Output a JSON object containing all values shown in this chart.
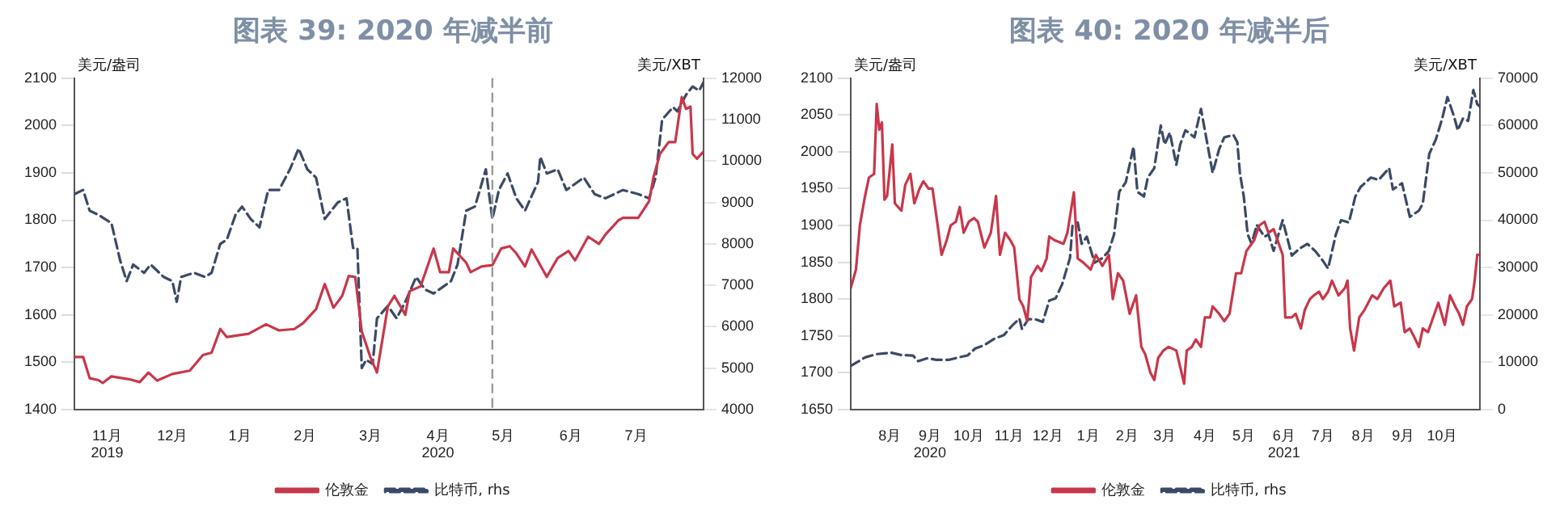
{
  "chart_data": [
    {
      "type": "line",
      "title": "图表 39: 2020 年减半前",
      "ylabel": "美元/盎司",
      "y2label": "美元/XBT",
      "xlim": [
        "2019-11-01",
        "2020-08-16"
      ],
      "ylim": [
        1400,
        2100
      ],
      "yticks": [
        1400,
        1500,
        1600,
        1700,
        1800,
        1900,
        2000,
        2100
      ],
      "y2lim": [
        4000,
        12000
      ],
      "y2ticks": [
        4000,
        5000,
        6000,
        7000,
        8000,
        9000,
        10000,
        11000,
        12000
      ],
      "xticks": [
        {
          "value": "2019-11-16",
          "label": "11月\n2019"
        },
        {
          "value": "2019-12-16",
          "label": "12月"
        },
        {
          "value": "2020-01-16",
          "label": "1月"
        },
        {
          "value": "2020-02-15",
          "label": "2月"
        },
        {
          "value": "2020-03-16",
          "label": "3月"
        },
        {
          "value": "2020-04-16",
          "label": "4月\n2020"
        },
        {
          "value": "2020-05-16",
          "label": "5月"
        },
        {
          "value": "2020-06-16",
          "label": "6月"
        },
        {
          "value": "2020-07-16",
          "label": "7月"
        }
      ],
      "grid": false,
      "legend": "bottom",
      "ref_lines": [
        {
          "axis": "x",
          "value": "2020-05-11",
          "color": "#9a9a9a",
          "line_style": "dashed"
        }
      ],
      "series": [
        {
          "name": "伦敦金",
          "color": "#c8374a",
          "line_style": "solid",
          "x": [
            "2019-11-01",
            "2019-11-05",
            "2019-11-08",
            "2019-11-12",
            "2019-11-14",
            "2019-11-18",
            "2019-11-26",
            "2019-12-01",
            "2019-12-05",
            "2019-12-09",
            "2019-12-16",
            "2019-12-24",
            "2019-12-30",
            "2020-01-03",
            "2020-01-07",
            "2020-01-10",
            "2020-01-20",
            "2020-01-28",
            "2020-02-03",
            "2020-02-10",
            "2020-02-14",
            "2020-02-20",
            "2020-02-24",
            "2020-02-28",
            "2020-03-03",
            "2020-03-06",
            "2020-03-09",
            "2020-03-12",
            "2020-03-16",
            "2020-03-19",
            "2020-03-24",
            "2020-03-27",
            "2020-04-01",
            "2020-04-03",
            "2020-04-08",
            "2020-04-14",
            "2020-04-17",
            "2020-04-21",
            "2020-04-23",
            "2020-04-29",
            "2020-05-01",
            "2020-05-06",
            "2020-05-11",
            "2020-05-15",
            "2020-05-19",
            "2020-05-22",
            "2020-05-26",
            "2020-05-29",
            "2020-06-05",
            "2020-06-10",
            "2020-06-15",
            "2020-06-18",
            "2020-06-24",
            "2020-06-29",
            "2020-07-02",
            "2020-07-08",
            "2020-07-10",
            "2020-07-17",
            "2020-07-22",
            "2020-07-24",
            "2020-07-27",
            "2020-07-31",
            "2020-08-03",
            "2020-08-06",
            "2020-08-08",
            "2020-08-10",
            "2020-08-11",
            "2020-08-13",
            "2020-08-16"
          ],
          "values": [
            1511,
            1511,
            1466,
            1462,
            1456,
            1470,
            1464,
            1458,
            1478,
            1461,
            1475,
            1482,
            1515,
            1520,
            1570,
            1553,
            1560,
            1580,
            1567,
            1570,
            1582,
            1612,
            1665,
            1615,
            1640,
            1682,
            1680,
            1565,
            1510,
            1478,
            1618,
            1640,
            1600,
            1650,
            1660,
            1740,
            1690,
            1690,
            1740,
            1710,
            1690,
            1702,
            1705,
            1740,
            1745,
            1730,
            1702,
            1738,
            1680,
            1720,
            1735,
            1715,
            1765,
            1750,
            1770,
            1800,
            1805,
            1805,
            1840,
            1890,
            1940,
            1965,
            1965,
            2060,
            2035,
            2040,
            1940,
            1930,
            1945
          ]
        },
        {
          "name": "比特币, rhs",
          "color": "#3b4a66",
          "axis": "y2",
          "line_style": "dashed",
          "x": [
            "2019-11-01",
            "2019-11-05",
            "2019-11-08",
            "2019-11-12",
            "2019-11-18",
            "2019-11-22",
            "2019-11-25",
            "2019-11-28",
            "2019-12-03",
            "2019-12-06",
            "2019-12-12",
            "2019-12-16",
            "2019-12-18",
            "2019-12-20",
            "2019-12-26",
            "2019-12-31",
            "2020-01-03",
            "2020-01-07",
            "2020-01-10",
            "2020-01-14",
            "2020-01-17",
            "2020-01-21",
            "2020-01-25",
            "2020-01-29",
            "2020-02-03",
            "2020-02-08",
            "2020-02-12",
            "2020-02-16",
            "2020-02-20",
            "2020-02-24",
            "2020-03-01",
            "2020-03-05",
            "2020-03-08",
            "2020-03-10",
            "2020-03-12",
            "2020-03-14",
            "2020-03-17",
            "2020-03-19",
            "2020-03-24",
            "2020-03-28",
            "2020-04-01",
            "2020-04-06",
            "2020-04-10",
            "2020-04-14",
            "2020-04-22",
            "2020-04-25",
            "2020-04-29",
            "2020-05-03",
            "2020-05-08",
            "2020-05-11",
            "2020-05-14",
            "2020-05-18",
            "2020-05-22",
            "2020-05-26",
            "2020-06-01",
            "2020-06-02",
            "2020-06-05",
            "2020-06-10",
            "2020-06-14",
            "2020-06-22",
            "2020-06-27",
            "2020-07-02",
            "2020-07-10",
            "2020-07-17",
            "2020-07-22",
            "2020-07-25",
            "2020-07-28",
            "2020-08-02",
            "2020-08-04",
            "2020-08-08",
            "2020-08-11",
            "2020-08-14",
            "2020-08-16"
          ],
          "values": [
            9200,
            9300,
            8800,
            8700,
            8500,
            7600,
            7100,
            7500,
            7300,
            7500,
            7200,
            7100,
            6600,
            7200,
            7300,
            7200,
            7300,
            8000,
            8100,
            8700,
            8900,
            8600,
            8400,
            9300,
            9300,
            9800,
            10300,
            9800,
            9600,
            8600,
            9000,
            9100,
            7900,
            7900,
            5000,
            5200,
            5100,
            6200,
            6500,
            6200,
            6600,
            7200,
            6900,
            6800,
            7100,
            7500,
            8800,
            8900,
            9800,
            8600,
            9300,
            9700,
            9100,
            8800,
            9500,
            10100,
            9700,
            9800,
            9300,
            9600,
            9200,
            9100,
            9300,
            9200,
            9100,
            9600,
            11000,
            11300,
            11200,
            11600,
            11800,
            11700,
            11900
          ]
        }
      ]
    },
    {
      "type": "line",
      "title": "图表 40: 2020 年减半后",
      "ylabel": "美元/盎司",
      "y2label": "美元/XBT",
      "xlim": [
        "2020-07-17",
        "2021-11-14"
      ],
      "ylim": [
        1650,
        2100
      ],
      "yticks": [
        1650,
        1700,
        1750,
        1800,
        1850,
        1900,
        1950,
        2000,
        2050,
        2100
      ],
      "y2lim": [
        0,
        70000
      ],
      "y2ticks": [
        0,
        10000,
        20000,
        30000,
        40000,
        50000,
        60000,
        70000
      ],
      "xticks": [
        {
          "value": "2020-08-16",
          "label": "8月"
        },
        {
          "value": "2020-09-16",
          "label": "9月\n2020"
        },
        {
          "value": "2020-10-16",
          "label": "10月"
        },
        {
          "value": "2020-11-16",
          "label": "11月"
        },
        {
          "value": "2020-12-16",
          "label": "12月"
        },
        {
          "value": "2021-01-16",
          "label": "1月"
        },
        {
          "value": "2021-02-15",
          "label": "2月"
        },
        {
          "value": "2021-03-16",
          "label": "3月"
        },
        {
          "value": "2021-04-16",
          "label": "4月"
        },
        {
          "value": "2021-05-16",
          "label": "5月"
        },
        {
          "value": "2021-06-16",
          "label": "6月\n2021"
        },
        {
          "value": "2021-07-16",
          "label": "7月"
        },
        {
          "value": "2021-08-16",
          "label": "8月"
        },
        {
          "value": "2021-09-16",
          "label": "9月"
        },
        {
          "value": "2021-10-16",
          "label": "10月"
        }
      ],
      "grid": false,
      "legend": "bottom",
      "series": [
        {
          "name": "伦敦金",
          "color": "#c8374a",
          "line_style": "solid",
          "x": [
            "2020-07-17",
            "2020-07-21",
            "2020-07-24",
            "2020-07-28",
            "2020-07-31",
            "2020-08-04",
            "2020-08-06",
            "2020-08-08",
            "2020-08-10",
            "2020-08-12",
            "2020-08-14",
            "2020-08-18",
            "2020-08-20",
            "2020-08-25",
            "2020-08-28",
            "2020-09-01",
            "2020-09-04",
            "2020-09-08",
            "2020-09-11",
            "2020-09-15",
            "2020-09-18",
            "2020-09-22",
            "2020-09-25",
            "2020-09-29",
            "2020-10-02",
            "2020-10-06",
            "2020-10-09",
            "2020-10-12",
            "2020-10-16",
            "2020-10-20",
            "2020-10-23",
            "2020-10-28",
            "2020-11-02",
            "2020-11-06",
            "2020-11-09",
            "2020-11-13",
            "2020-11-17",
            "2020-11-20",
            "2020-11-24",
            "2020-11-27",
            "2020-11-30",
            "2020-12-03",
            "2020-12-08",
            "2020-12-11",
            "2020-12-15",
            "2020-12-17",
            "2020-12-21",
            "2020-12-28",
            "2020-12-31",
            "2021-01-05",
            "2021-01-08",
            "2021-01-12",
            "2021-01-18",
            "2021-01-22",
            "2021-01-27",
            "2021-02-01",
            "2021-02-04",
            "2021-02-08",
            "2021-02-12",
            "2021-02-17",
            "2021-02-22",
            "2021-02-26",
            "2021-03-01",
            "2021-03-05",
            "2021-03-08",
            "2021-03-11",
            "2021-03-15",
            "2021-03-19",
            "2021-03-25",
            "2021-03-31",
            "2021-04-02",
            "2021-04-06",
            "2021-04-09",
            "2021-04-13",
            "2021-04-16",
            "2021-04-20",
            "2021-04-22",
            "2021-04-27",
            "2021-05-01",
            "2021-05-05",
            "2021-05-10",
            "2021-05-14",
            "2021-05-18",
            "2021-05-24",
            "2021-05-28",
            "2021-06-01",
            "2021-06-04",
            "2021-06-08",
            "2021-06-11",
            "2021-06-15",
            "2021-06-17",
            "2021-06-22",
            "2021-06-25",
            "2021-06-29",
            "2021-07-02",
            "2021-07-06",
            "2021-07-09",
            "2021-07-13",
            "2021-07-16",
            "2021-07-20",
            "2021-07-23",
            "2021-07-28",
            "2021-08-02",
            "2021-08-04",
            "2021-08-06",
            "2021-08-09",
            "2021-08-13",
            "2021-08-17",
            "2021-08-23",
            "2021-08-27",
            "2021-09-01",
            "2021-09-06",
            "2021-09-09",
            "2021-09-14",
            "2021-09-17",
            "2021-09-21",
            "2021-09-24",
            "2021-09-28",
            "2021-10-01",
            "2021-10-05",
            "2021-10-08",
            "2021-10-13",
            "2021-10-18",
            "2021-10-22",
            "2021-10-26",
            "2021-10-29",
            "2021-11-01",
            "2021-11-04",
            "2021-11-08",
            "2021-11-10",
            "2021-11-12",
            "2021-11-14"
          ],
          "values": [
            1815,
            1840,
            1900,
            1940,
            1965,
            1970,
            2065,
            2030,
            2040,
            1935,
            1940,
            2010,
            1930,
            1920,
            1955,
            1970,
            1930,
            1950,
            1960,
            1950,
            1950,
            1900,
            1860,
            1880,
            1900,
            1905,
            1925,
            1890,
            1905,
            1910,
            1905,
            1870,
            1890,
            1940,
            1860,
            1890,
            1880,
            1870,
            1800,
            1790,
            1770,
            1830,
            1845,
            1838,
            1855,
            1885,
            1880,
            1875,
            1890,
            1945,
            1855,
            1850,
            1840,
            1860,
            1845,
            1860,
            1800,
            1835,
            1825,
            1780,
            1805,
            1735,
            1725,
            1700,
            1690,
            1720,
            1730,
            1735,
            1730,
            1685,
            1730,
            1735,
            1745,
            1735,
            1775,
            1775,
            1790,
            1780,
            1770,
            1780,
            1835,
            1835,
            1865,
            1880,
            1900,
            1905,
            1890,
            1895,
            1880,
            1860,
            1775,
            1775,
            1780,
            1760,
            1785,
            1800,
            1805,
            1810,
            1800,
            1810,
            1825,
            1805,
            1815,
            1825,
            1760,
            1730,
            1775,
            1785,
            1805,
            1800,
            1815,
            1825,
            1790,
            1795,
            1755,
            1760,
            1750,
            1735,
            1760,
            1755,
            1770,
            1795,
            1765,
            1805,
            1790,
            1780,
            1765,
            1790,
            1800,
            1825,
            1860,
            1860
          ]
        },
        {
          "name": "比特币, rhs",
          "color": "#3b4a66",
          "axis": "y2",
          "line_style": "dashed",
          "x": [
            "2020-07-17",
            "2020-07-22",
            "2020-07-28",
            "2020-08-06",
            "2020-08-17",
            "2020-08-25",
            "2020-09-03",
            "2020-09-07",
            "2020-09-14",
            "2020-09-21",
            "2020-10-01",
            "2020-10-08",
            "2020-10-15",
            "2020-10-21",
            "2020-10-28",
            "2020-11-05",
            "2020-11-12",
            "2020-11-18",
            "2020-11-24",
            "2020-11-26",
            "2020-12-01",
            "2020-12-07",
            "2020-12-12",
            "2020-12-17",
            "2020-12-22",
            "2020-12-27",
            "2021-01-02",
            "2021-01-04",
            "2021-01-08",
            "2021-01-11",
            "2021-01-15",
            "2021-01-21",
            "2021-01-27",
            "2021-02-01",
            "2021-02-05",
            "2021-02-09",
            "2021-02-14",
            "2021-02-20",
            "2021-02-23",
            "2021-02-28",
            "2021-03-03",
            "2021-03-08",
            "2021-03-13",
            "2021-03-16",
            "2021-03-20",
            "2021-03-25",
            "2021-03-28",
            "2021-04-01",
            "2021-04-08",
            "2021-04-13",
            "2021-04-18",
            "2021-04-22",
            "2021-04-27",
            "2021-05-01",
            "2021-05-08",
            "2021-05-11",
            "2021-05-13",
            "2021-05-16",
            "2021-05-19",
            "2021-05-22",
            "2021-05-26",
            "2021-06-01",
            "2021-06-04",
            "2021-06-08",
            "2021-06-15",
            "2021-06-22",
            "2021-06-28",
            "2021-07-04",
            "2021-07-10",
            "2021-07-15",
            "2021-07-20",
            "2021-07-26",
            "2021-07-30",
            "2021-08-05",
            "2021-08-10",
            "2021-08-14",
            "2021-08-22",
            "2021-08-28",
            "2021-09-05",
            "2021-09-08",
            "2021-09-15",
            "2021-09-21",
            "2021-09-28",
            "2021-10-01",
            "2021-10-06",
            "2021-10-11",
            "2021-10-16",
            "2021-10-20",
            "2021-10-25",
            "2021-10-28",
            "2021-11-01",
            "2021-11-05",
            "2021-11-09",
            "2021-11-12",
            "2021-11-14"
          ],
          "values": [
            9200,
            10000,
            11000,
            11700,
            12000,
            11500,
            11400,
            10200,
            10800,
            10500,
            10500,
            11000,
            11400,
            12900,
            13600,
            15000,
            15700,
            17600,
            19200,
            17000,
            19100,
            19000,
            18500,
            23000,
            23500,
            26500,
            32000,
            39000,
            39500,
            35000,
            36500,
            31000,
            32000,
            33500,
            37000,
            46000,
            48000,
            55500,
            46000,
            45000,
            49000,
            51000,
            60000,
            56000,
            58500,
            51700,
            56000,
            59000,
            57500,
            63500,
            56000,
            50000,
            55000,
            57500,
            58000,
            56500,
            50000,
            45000,
            37000,
            35000,
            39000,
            36500,
            37000,
            33500,
            40000,
            32500,
            34000,
            35000,
            33500,
            31800,
            29800,
            37000,
            40000,
            39500,
            45000,
            47000,
            49000,
            48500,
            51000,
            46500,
            47800,
            40700,
            42000,
            43500,
            54000,
            57000,
            61500,
            66000,
            62000,
            59000,
            61500,
            61000,
            67500,
            64500,
            64000
          ]
        }
      ]
    }
  ]
}
